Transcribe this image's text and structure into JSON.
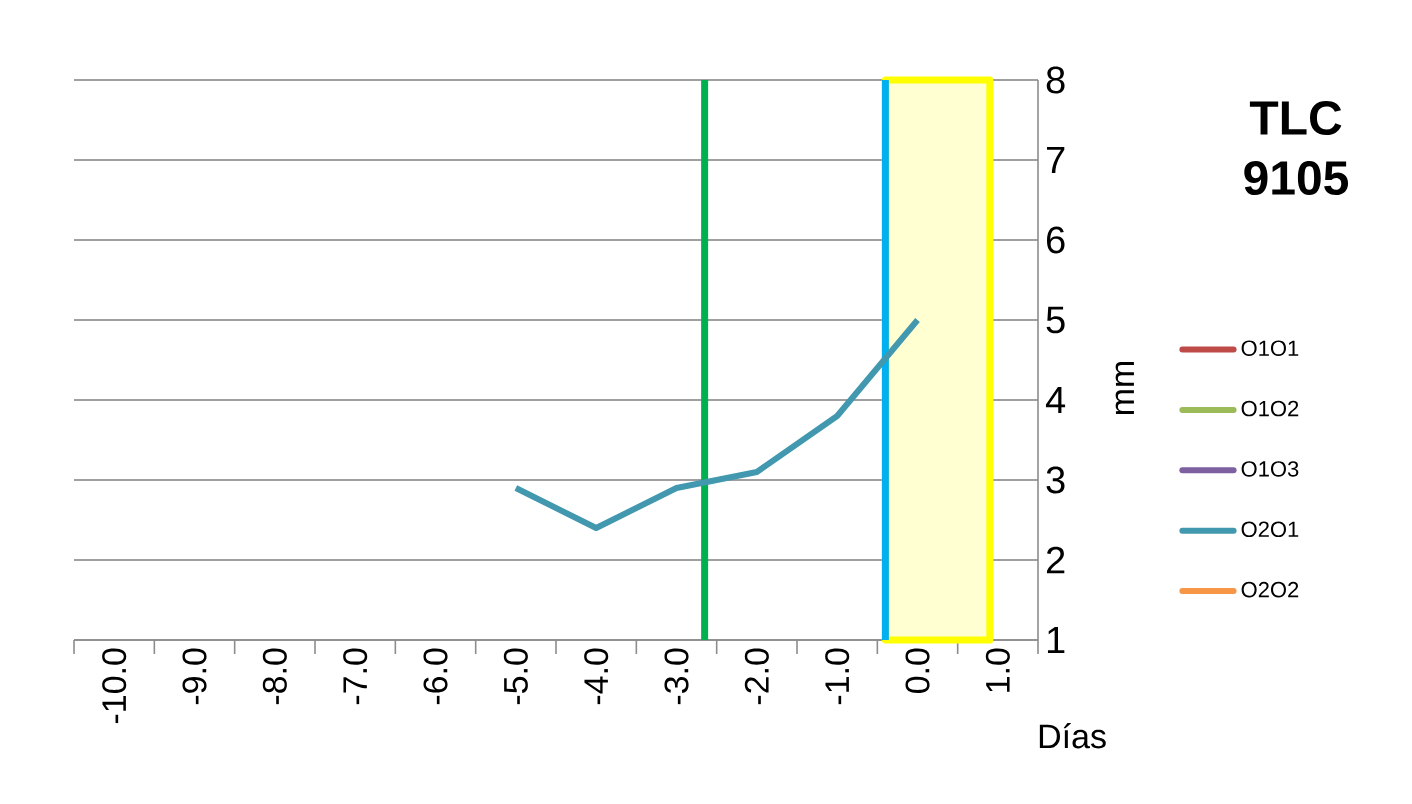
{
  "chart_data": {
    "type": "line",
    "title": "TLC 9105",
    "xlabel": "Días",
    "ylabel": "mm",
    "x": [
      -5,
      -4,
      -3,
      -2,
      -1,
      0
    ],
    "series": [
      {
        "name": "O1O1",
        "color": "#be4b48",
        "values": [
          null,
          null,
          null,
          null,
          null,
          null
        ]
      },
      {
        "name": "O1O2",
        "color": "#9bbb59",
        "values": [
          null,
          null,
          null,
          null,
          null,
          null
        ]
      },
      {
        "name": "O1O3",
        "color": "#7d60a0",
        "values": [
          null,
          null,
          null,
          null,
          null,
          null
        ]
      },
      {
        "name": "O2O1",
        "color": "#4198af",
        "values": [
          2.9,
          2.4,
          2.9,
          3.1,
          3.8,
          5.0
        ]
      },
      {
        "name": "O2O2",
        "color": "#f79646",
        "values": [
          null,
          null,
          null,
          null,
          null,
          null
        ]
      }
    ],
    "xlim": [
      -10.5,
      1.5
    ],
    "xticks": [
      {
        "value": -10,
        "label": "-10.0"
      },
      {
        "value": -9,
        "label": "-9.0"
      },
      {
        "value": -8,
        "label": "-8.0"
      },
      {
        "value": -7,
        "label": "-7.0"
      },
      {
        "value": -6,
        "label": "-6.0"
      },
      {
        "value": -5,
        "label": "-5.0"
      },
      {
        "value": -4,
        "label": "-4.0"
      },
      {
        "value": -3,
        "label": "-3.0"
      },
      {
        "value": -2,
        "label": "-2.0"
      },
      {
        "value": -1,
        "label": "-1.0"
      },
      {
        "value": 0,
        "label": "0.0"
      },
      {
        "value": 1,
        "label": "1.0"
      },
      {
        "value": -10.5,
        "label": null
      },
      {
        "value": -9.5,
        "label": null
      },
      {
        "value": -8.5,
        "label": null
      },
      {
        "value": -7.5,
        "label": null
      },
      {
        "value": -6.5,
        "label": null
      },
      {
        "value": -5.5,
        "label": null
      },
      {
        "value": -4.5,
        "label": null
      },
      {
        "value": -3.5,
        "label": null
      },
      {
        "value": -2.5,
        "label": null
      },
      {
        "value": -1.5,
        "label": null
      },
      {
        "value": -0.5,
        "label": null
      },
      {
        "value": 0.5,
        "label": null
      },
      {
        "value": 1.5,
        "label": null
      }
    ],
    "ylim": [
      1,
      8
    ],
    "yticks": [
      1,
      2,
      3,
      4,
      5,
      6,
      7,
      8
    ],
    "ref_lines": [
      {
        "axis": "x",
        "value": -2.65,
        "color": "#00b050"
      },
      {
        "axis": "x",
        "value": -0.4,
        "color": "#00b0f0"
      }
    ],
    "bands": [
      {
        "axis": "x",
        "from": -0.4,
        "to": 0.9,
        "color": "#ffff00"
      }
    ],
    "grid": "y",
    "legend": "right",
    "marker": "none",
    "line_style": "solid"
  }
}
